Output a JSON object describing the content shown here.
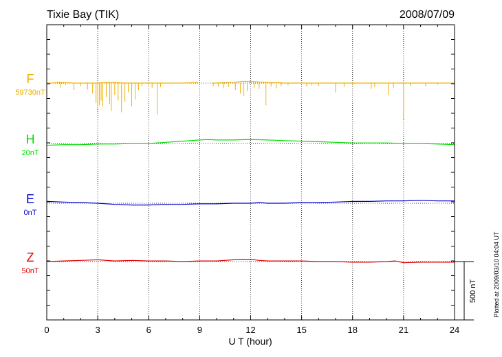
{
  "header": {
    "station": "Tixie Bay (TIK)",
    "date": "2008/07/09"
  },
  "footer": {
    "plotted_at": "Plotted at 2009/03/10 04:04 UT",
    "scale_label": "500 nT"
  },
  "chart_data": {
    "type": "line",
    "title": "Tixie Bay (TIK)",
    "xlabel": "U T (hour)",
    "ylabel": "",
    "xlim": [
      0,
      24
    ],
    "x_ticks": [
      "0",
      "3",
      "6",
      "9",
      "12",
      "15",
      "18",
      "21",
      "24"
    ],
    "grid": true,
    "scale_bar_nT": 500,
    "series": [
      {
        "name": "F",
        "baseline_label": "59730nT",
        "color": "#f0b000",
        "x": [
          0,
          0.3,
          0.6,
          1.0,
          1.5,
          2.0,
          2.5,
          3.0,
          3.5,
          4.0,
          4.5,
          5.0,
          5.5,
          6.0,
          6.5,
          7.0,
          8.0,
          8.9,
          9.7,
          10.0,
          10.5,
          11.0,
          11.5,
          12.0,
          12.5,
          13.0,
          13.5,
          14.0,
          15.0,
          16.0,
          17.0,
          18.0,
          19.0,
          20.0,
          21.0,
          22.0,
          23.0,
          24.0
        ],
        "y": [
          0,
          0,
          5,
          5,
          0,
          0,
          0,
          0,
          5,
          5,
          0,
          0,
          0,
          0,
          0,
          0,
          0,
          5,
          0,
          0,
          5,
          5,
          15,
          15,
          10,
          5,
          5,
          0,
          0,
          0,
          0,
          0,
          0,
          0,
          0,
          0,
          0,
          0
        ],
        "gaps": [
          [
            9.0,
            9.6
          ]
        ],
        "spikes": [
          [
            0.8,
            -40
          ],
          [
            1.1,
            -15
          ],
          [
            1.6,
            -60
          ],
          [
            2.0,
            -25
          ],
          [
            2.4,
            -55
          ],
          [
            2.7,
            -90
          ],
          [
            2.9,
            -170
          ],
          [
            3.0,
            -220
          ],
          [
            3.1,
            -190
          ],
          [
            3.2,
            -150
          ],
          [
            3.3,
            -200
          ],
          [
            3.5,
            -120
          ],
          [
            3.7,
            -180
          ],
          [
            3.8,
            -240
          ],
          [
            4.0,
            -100
          ],
          [
            4.2,
            -150
          ],
          [
            4.4,
            -250
          ],
          [
            4.6,
            -160
          ],
          [
            4.8,
            -80
          ],
          [
            5.0,
            -200
          ],
          [
            5.2,
            -140
          ],
          [
            5.4,
            -60
          ],
          [
            5.6,
            -30
          ],
          [
            6.0,
            -20
          ],
          [
            6.2,
            -40
          ],
          [
            6.5,
            -270
          ],
          [
            6.7,
            -35
          ],
          [
            9.8,
            -25
          ],
          [
            10.1,
            -30
          ],
          [
            10.4,
            -45
          ],
          [
            10.7,
            -35
          ],
          [
            11.1,
            -60
          ],
          [
            11.4,
            -90
          ],
          [
            11.6,
            -110
          ],
          [
            11.8,
            -70
          ],
          [
            12.2,
            -40
          ],
          [
            12.5,
            -50
          ],
          [
            12.9,
            -190
          ],
          [
            13.2,
            -30
          ],
          [
            13.5,
            -45
          ],
          [
            13.8,
            -25
          ],
          [
            14.2,
            -20
          ],
          [
            15.3,
            -30
          ],
          [
            15.6,
            -20
          ],
          [
            16.0,
            -25
          ],
          [
            17.0,
            -80
          ],
          [
            17.5,
            -35
          ],
          [
            18.0,
            -20
          ],
          [
            19.1,
            -50
          ],
          [
            19.3,
            -35
          ],
          [
            20.1,
            -100
          ],
          [
            20.4,
            -40
          ],
          [
            21.0,
            -310
          ],
          [
            21.4,
            -25
          ],
          [
            22.3,
            -30
          ],
          [
            23.0,
            -15
          ]
        ]
      },
      {
        "name": "H",
        "baseline_label": "20nT",
        "color": "#00dd00",
        "x": [
          0,
          1,
          2,
          3,
          4,
          5,
          6,
          7,
          8,
          9,
          9.5,
          10,
          11,
          12,
          13,
          14,
          15,
          16,
          17,
          18,
          19,
          20,
          21,
          22,
          23,
          24
        ],
        "y": [
          -15,
          -10,
          -10,
          -5,
          -5,
          0,
          0,
          10,
          20,
          30,
          35,
          30,
          30,
          35,
          30,
          25,
          20,
          15,
          10,
          5,
          5,
          5,
          0,
          0,
          -5,
          -10
        ],
        "spikes": []
      },
      {
        "name": "E",
        "baseline_label": "0nT",
        "color": "#0000cc",
        "x": [
          0,
          1,
          2,
          3,
          4,
          5,
          6,
          7,
          8,
          9,
          10,
          11,
          12,
          12.5,
          13,
          14,
          15,
          16,
          17,
          18,
          19,
          20,
          21,
          22,
          23,
          24
        ],
        "y": [
          15,
          10,
          5,
          0,
          -10,
          -15,
          -15,
          -10,
          -10,
          -5,
          -5,
          0,
          0,
          5,
          0,
          0,
          5,
          5,
          10,
          15,
          15,
          20,
          20,
          25,
          20,
          20
        ],
        "spikes": []
      },
      {
        "name": "Z",
        "baseline_label": "50nT",
        "color": "#dd0000",
        "x": [
          0,
          1,
          2,
          3,
          4,
          5,
          6,
          7,
          8,
          9,
          10,
          11,
          11.5,
          12,
          12.5,
          13,
          14,
          15,
          16,
          17,
          18,
          19,
          20,
          20.5,
          21,
          22,
          23,
          24
        ],
        "y": [
          0,
          5,
          10,
          15,
          5,
          10,
          5,
          5,
          0,
          5,
          5,
          15,
          20,
          20,
          10,
          5,
          5,
          5,
          0,
          0,
          -5,
          -5,
          0,
          5,
          -10,
          -5,
          -5,
          -5
        ],
        "spikes": []
      }
    ]
  }
}
